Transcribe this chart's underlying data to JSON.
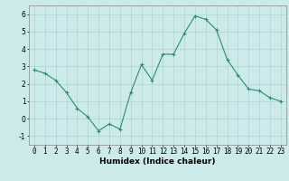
{
  "x": [
    0,
    1,
    2,
    3,
    4,
    5,
    6,
    7,
    8,
    9,
    10,
    11,
    12,
    13,
    14,
    15,
    16,
    17,
    18,
    19,
    20,
    21,
    22,
    23
  ],
  "y": [
    2.8,
    2.6,
    2.2,
    1.5,
    0.6,
    0.1,
    -0.7,
    -0.3,
    -0.6,
    1.5,
    3.1,
    2.2,
    3.7,
    3.7,
    4.9,
    5.9,
    5.7,
    5.1,
    3.4,
    2.5,
    1.7,
    1.6,
    1.2,
    1.0
  ],
  "line_color": "#2e8b72",
  "marker": "+",
  "marker_color": "#2e8b72",
  "bg_color": "#cceaea",
  "grid_color": "#aad4d4",
  "xlabel": "Humidex (Indice chaleur)",
  "xlabel_fontsize": 6.5,
  "tick_fontsize": 5.5,
  "ylim": [
    -1.5,
    6.5
  ],
  "xlim": [
    -0.5,
    23.5
  ],
  "yticks": [
    -1,
    0,
    1,
    2,
    3,
    4,
    5,
    6
  ],
  "xticks": [
    0,
    1,
    2,
    3,
    4,
    5,
    6,
    7,
    8,
    9,
    10,
    11,
    12,
    13,
    14,
    15,
    16,
    17,
    18,
    19,
    20,
    21,
    22,
    23
  ]
}
